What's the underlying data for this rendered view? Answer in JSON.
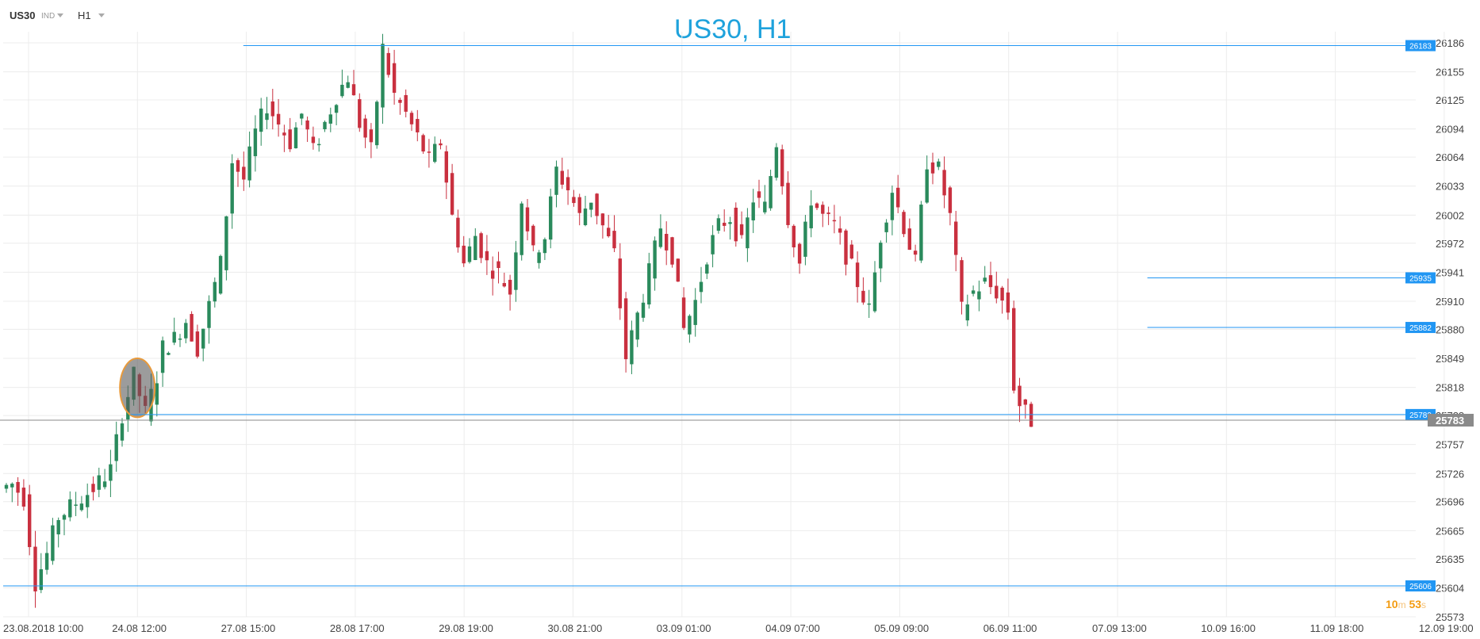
{
  "header": {
    "symbol": "US30",
    "symbol_type": "IND",
    "timeframe": "H1",
    "chart_title": "US30, H1"
  },
  "timer": {
    "minutes": "10",
    "minutes_unit": "m",
    "seconds": "53",
    "seconds_unit": "s"
  },
  "colors": {
    "bull": "#2a8a5c",
    "bear": "#c9303f",
    "level": "#2196f3",
    "price": "#8a8a8a",
    "grid": "#ececec"
  },
  "chart_data": {
    "type": "candlestick",
    "y_ticks": [
      26186,
      26155,
      26125,
      26094,
      26064,
      26033,
      26002,
      25972,
      25941,
      25910,
      25880,
      25849,
      25818,
      25788,
      25757,
      25726,
      25696,
      25665,
      25635,
      25604,
      25573
    ],
    "x_ticks": [
      "23.08.2018   10:00",
      "24.08   12:00",
      "27.08   15:00",
      "28.08   17:00",
      "29.08   19:00",
      "30.08   21:00",
      "03.09   01:00",
      "04.09   07:00",
      "05.09   09:00",
      "06.09   11:00",
      "07.09   13:00",
      "10.09   16:00",
      "11.09   18:00",
      "12.09   19:00"
    ],
    "levels": [
      {
        "label": "26183",
        "value": 26183,
        "from": 0.17
      },
      {
        "label": "25935",
        "value": 25935,
        "from": 0.81
      },
      {
        "label": "25882",
        "value": 25882,
        "from": 0.81
      },
      {
        "label": "25789",
        "value": 25789,
        "from": 0.09
      },
      {
        "label": "25606",
        "value": 25606,
        "from": 0.0
      }
    ],
    "current_price": {
      "label": "25783",
      "value": 25783
    },
    "highlight": {
      "value_top": 25849,
      "value_bottom": 25786,
      "bar_position": 0.095
    },
    "path": [
      [
        25710,
        0
      ],
      [
        25715,
        2
      ],
      [
        25700,
        4
      ],
      [
        25610,
        6
      ],
      [
        25640,
        8
      ],
      [
        25680,
        10
      ],
      [
        25690,
        12
      ],
      [
        25700,
        14
      ],
      [
        25710,
        16
      ],
      [
        25730,
        19
      ],
      [
        25790,
        21
      ],
      [
        25830,
        23
      ],
      [
        25790,
        25
      ],
      [
        25830,
        27
      ],
      [
        25860,
        28
      ],
      [
        25870,
        30
      ],
      [
        25890,
        32
      ],
      [
        25860,
        34
      ],
      [
        25950,
        38
      ],
      [
        26060,
        40
      ],
      [
        26040,
        42
      ],
      [
        26090,
        44
      ],
      [
        26120,
        46
      ],
      [
        26100,
        48
      ],
      [
        26080,
        50
      ],
      [
        26110,
        52
      ],
      [
        26070,
        54
      ],
      [
        26100,
        56
      ],
      [
        26130,
        58
      ],
      [
        26150,
        60
      ],
      [
        26100,
        62
      ],
      [
        26070,
        64
      ],
      [
        26180,
        66
      ],
      [
        26130,
        68
      ],
      [
        26110,
        70
      ],
      [
        26060,
        74
      ],
      [
        26080,
        76
      ],
      [
        26000,
        78
      ],
      [
        25950,
        80
      ],
      [
        25980,
        82
      ],
      [
        25950,
        84
      ],
      [
        25940,
        86
      ],
      [
        25920,
        88
      ],
      [
        26020,
        90
      ],
      [
        25960,
        92
      ],
      [
        25980,
        94
      ],
      [
        26050,
        96
      ],
      [
        26030,
        98
      ],
      [
        26000,
        100
      ],
      [
        26020,
        102
      ],
      [
        25990,
        104
      ],
      [
        25960,
        106
      ],
      [
        25850,
        108
      ],
      [
        25940,
        112
      ],
      [
        25990,
        114
      ],
      [
        25960,
        116
      ],
      [
        25880,
        118
      ],
      [
        25910,
        120
      ],
      [
        25960,
        122
      ],
      [
        25990,
        124
      ],
      [
        26000,
        126
      ],
      [
        25970,
        128
      ],
      [
        26020,
        130
      ],
      [
        26010,
        132
      ],
      [
        26080,
        134
      ],
      [
        26000,
        136
      ],
      [
        25950,
        138
      ],
      [
        26020,
        140
      ],
      [
        26000,
        142
      ],
      [
        25990,
        144
      ],
      [
        25960,
        146
      ],
      [
        25900,
        150
      ],
      [
        25980,
        152
      ],
      [
        26030,
        154
      ],
      [
        25990,
        156
      ],
      [
        25950,
        158
      ],
      [
        26060,
        160
      ],
      [
        26050,
        162
      ],
      [
        26000,
        164
      ],
      [
        25900,
        166
      ],
      [
        25920,
        168
      ],
      [
        25930,
        170
      ],
      [
        25920,
        172
      ],
      [
        25900,
        174
      ],
      [
        25820,
        175
      ],
      [
        25800,
        176
      ],
      [
        25790,
        177
      ],
      [
        25783,
        178
      ]
    ]
  }
}
